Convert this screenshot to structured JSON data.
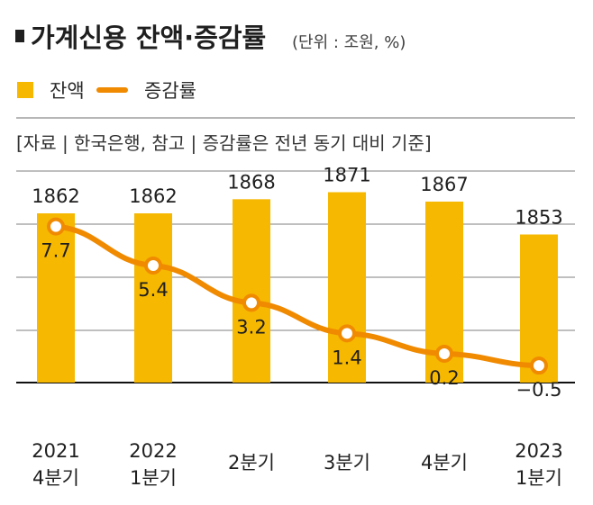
{
  "chart_data": {
    "type": "bar",
    "title": "가계신용 잔액·증감률",
    "unit": "(단위 : 조원, %)",
    "legend": [
      "잔액",
      "증감률"
    ],
    "source": "[자료 | 한국은행, 참고 | 증감률은 전년 동기 대비 기준]",
    "categories": [
      [
        "2021",
        "4분기"
      ],
      [
        "2022",
        "1분기"
      ],
      [
        "2분기"
      ],
      [
        "3분기"
      ],
      [
        "4분기"
      ],
      [
        "2023",
        "1분기"
      ]
    ],
    "series": [
      {
        "name": "잔액",
        "type": "bar",
        "values": [
          1862,
          1862,
          1868,
          1871,
          1867,
          1853
        ],
        "labels": [
          "1862",
          "1862",
          "1868",
          "1871",
          "1867",
          "1853"
        ]
      },
      {
        "name": "증감률",
        "type": "line",
        "values": [
          7.7,
          5.4,
          3.2,
          1.4,
          0.2,
          -0.5
        ],
        "labels": [
          "7.7",
          "5.4",
          "3.2",
          "1.4",
          "0.2",
          "−0.5"
        ]
      }
    ],
    "bar_ylim": [
      1790,
      1880
    ],
    "line_ylim": [
      -1.5,
      11.5
    ],
    "colors": {
      "bar": "#F6B800",
      "line": "#F08A00",
      "text": "#1f1f1f",
      "grid": "#7f7f7f"
    },
    "grid": true,
    "legend_position": "top-left"
  }
}
